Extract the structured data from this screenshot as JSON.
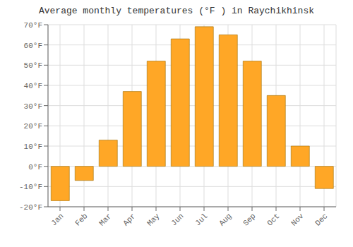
{
  "chart_data": {
    "type": "bar",
    "title": "Average monthly temperatures (°F ) in Raychikhinsk",
    "categories": [
      "Jan",
      "Feb",
      "Mar",
      "Apr",
      "May",
      "Jun",
      "Jul",
      "Aug",
      "Sep",
      "Oct",
      "Nov",
      "Dec"
    ],
    "values": [
      -17,
      -7,
      13,
      37,
      52,
      63,
      69,
      65,
      52,
      35,
      10,
      -11
    ],
    "color": "#FFA726",
    "ylim": [
      -20,
      70
    ],
    "yticks": [
      {
        "value": -20,
        "label": "-20°F"
      },
      {
        "value": -10,
        "label": "-10°F"
      },
      {
        "value": 0,
        "label": "0°F"
      },
      {
        "value": 10,
        "label": "10°F"
      },
      {
        "value": 20,
        "label": "20°F"
      },
      {
        "value": 30,
        "label": "30°F"
      },
      {
        "value": 40,
        "label": "40°F"
      },
      {
        "value": 50,
        "label": "50°F"
      },
      {
        "value": 60,
        "label": "60°F"
      },
      {
        "value": 70,
        "label": "70°F"
      }
    ],
    "grid": true
  }
}
